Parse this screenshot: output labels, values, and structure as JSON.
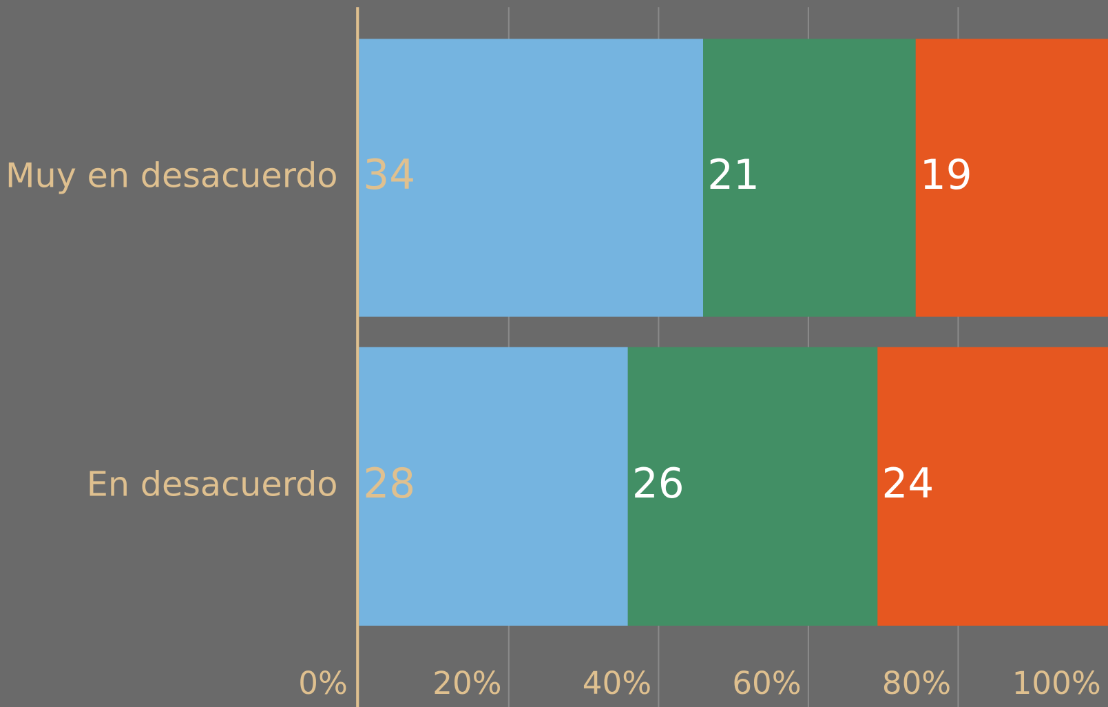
{
  "chart_data": {
    "type": "bar",
    "orientation": "horizontal",
    "stacking": "percent",
    "categories": [
      "Muy en desacuerdo",
      "En desacuerdo"
    ],
    "series": [
      {
        "color": "#75b4e0",
        "values": [
          34,
          28
        ]
      },
      {
        "color": "#428f65",
        "values": [
          21,
          26
        ]
      },
      {
        "color": "#e65720",
        "values": [
          19,
          24
        ]
      }
    ],
    "xlim": [
      0,
      100
    ],
    "xticks": [
      {
        "value": 0,
        "label": "0%"
      },
      {
        "value": 20,
        "label": "20%"
      },
      {
        "value": 40,
        "label": "40%"
      },
      {
        "value": 60,
        "label": "60%"
      },
      {
        "value": 80,
        "label": "80%"
      },
      {
        "value": 100,
        "label": "100%"
      }
    ],
    "grid": true
  }
}
